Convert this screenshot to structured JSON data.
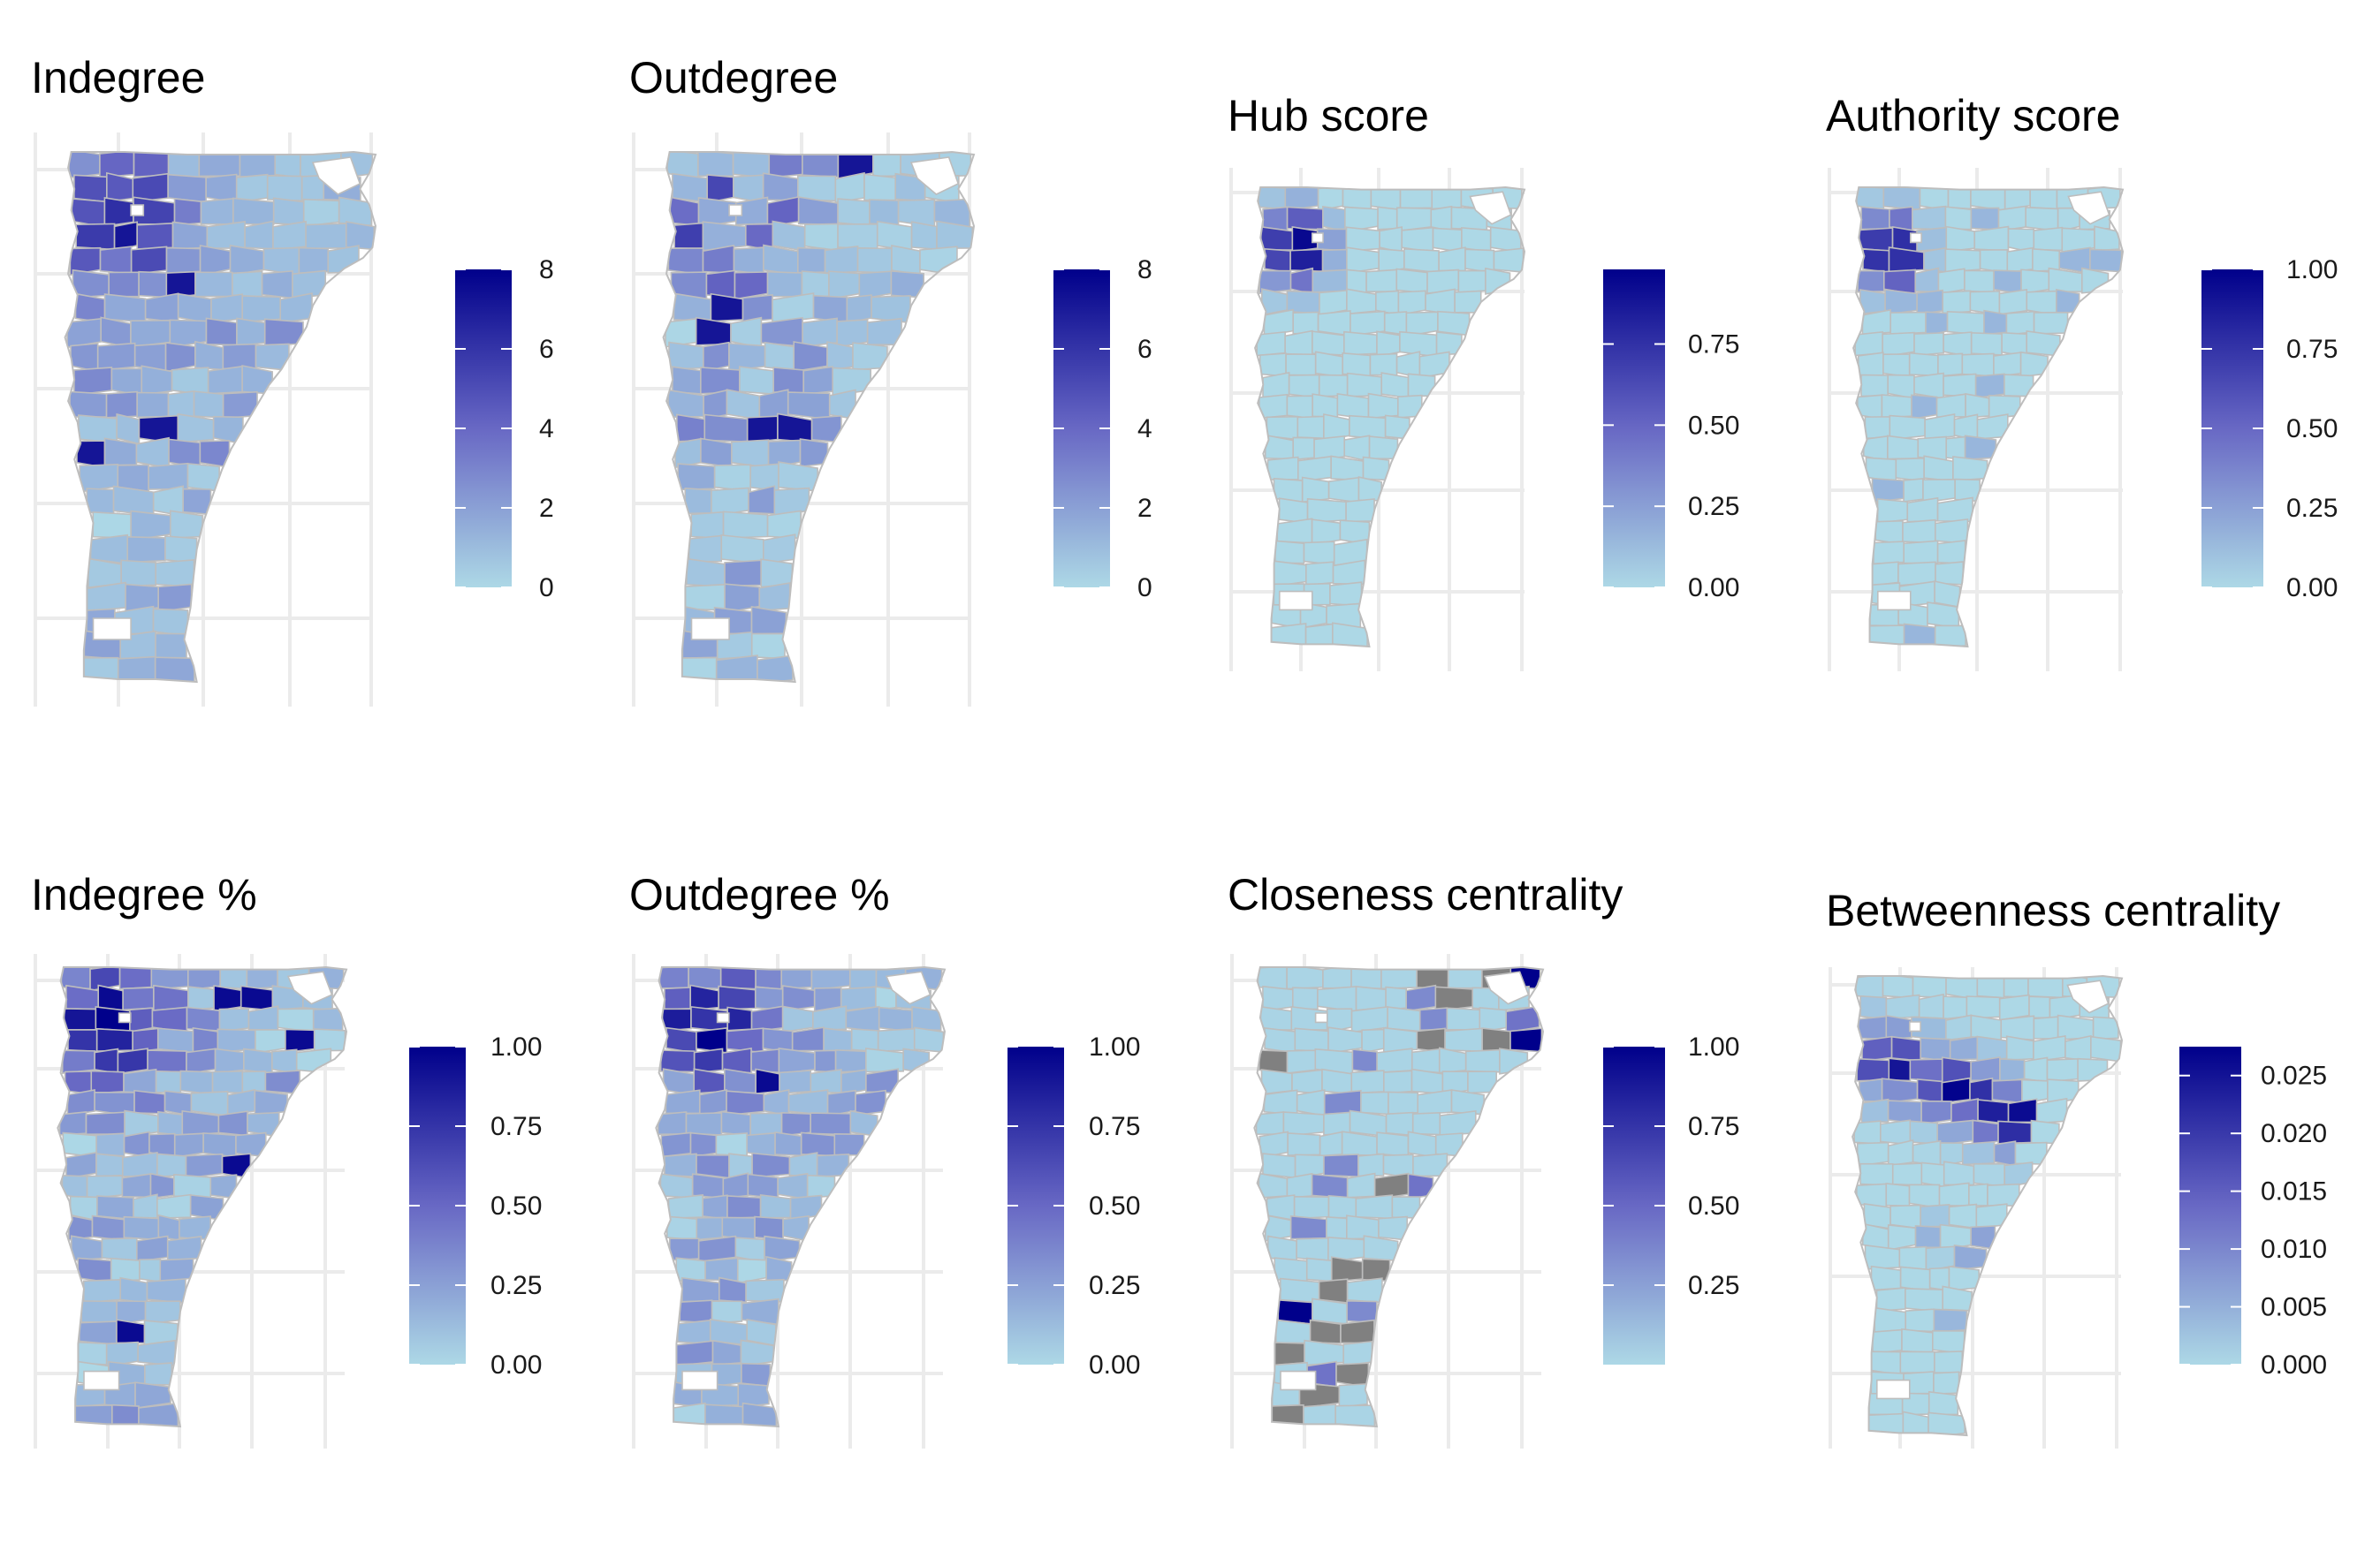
{
  "figure": {
    "colors": {
      "low": "#add8e6",
      "high": "#00008b",
      "na": "#808080",
      "county_border": "#bdbdbd",
      "grid": "#ebebeb"
    },
    "panels": [
      {
        "id": "indegree",
        "title": "Indegree",
        "legend": {
          "ticks": [
            "0",
            "2",
            "4",
            "6",
            "8"
          ],
          "tick_values": [
            0,
            2,
            4,
            6,
            8
          ],
          "range": [
            0,
            8
          ]
        },
        "pattern": "degree-in"
      },
      {
        "id": "outdegree",
        "title": "Outdegree",
        "legend": {
          "ticks": [
            "0",
            "2",
            "4",
            "6",
            "8"
          ],
          "tick_values": [
            0,
            2,
            4,
            6,
            8
          ],
          "range": [
            0,
            8
          ]
        },
        "pattern": "degree-out"
      },
      {
        "id": "hub-score",
        "title": "Hub score",
        "legend": {
          "ticks": [
            "0.00",
            "0.25",
            "0.50",
            "0.75"
          ],
          "tick_values": [
            0,
            0.25,
            0.5,
            0.75
          ],
          "range": [
            0,
            0.98
          ]
        },
        "pattern": "hub"
      },
      {
        "id": "authority-score",
        "title": "Authority score",
        "legend": {
          "ticks": [
            "0.00",
            "0.25",
            "0.50",
            "0.75",
            "1.00"
          ],
          "tick_values": [
            0,
            0.25,
            0.5,
            0.75,
            1.0
          ],
          "range": [
            0,
            1.0
          ]
        },
        "pattern": "authority"
      },
      {
        "id": "indegree-pct",
        "title": "Indegree %",
        "legend": {
          "ticks": [
            "0.00",
            "0.25",
            "0.50",
            "0.75",
            "1.00"
          ],
          "tick_values": [
            0,
            0.25,
            0.5,
            0.75,
            1.0
          ],
          "range": [
            0,
            1.0
          ]
        },
        "pattern": "pct-in"
      },
      {
        "id": "outdegree-pct",
        "title": "Outdegree %",
        "legend": {
          "ticks": [
            "0.00",
            "0.25",
            "0.50",
            "0.75",
            "1.00"
          ],
          "tick_values": [
            0,
            0.25,
            0.5,
            0.75,
            1.0
          ],
          "range": [
            0,
            1.0
          ]
        },
        "pattern": "pct-out"
      },
      {
        "id": "closeness-centrality",
        "title": "Closeness centrality",
        "legend": {
          "ticks": [
            "0.25",
            "0.50",
            "0.75",
            "1.00"
          ],
          "tick_values": [
            0.25,
            0.5,
            0.75,
            1.0
          ],
          "range": [
            0,
            1.0
          ]
        },
        "pattern": "closeness"
      },
      {
        "id": "betweenness-centrality",
        "title": "Betweenness centrality",
        "legend": {
          "ticks": [
            "0.000",
            "0.005",
            "0.010",
            "0.015",
            "0.020",
            "0.025"
          ],
          "tick_values": [
            0,
            0.005,
            0.01,
            0.015,
            0.02,
            0.025
          ],
          "range": [
            0,
            0.0275
          ]
        },
        "pattern": "betweenness"
      }
    ]
  }
}
